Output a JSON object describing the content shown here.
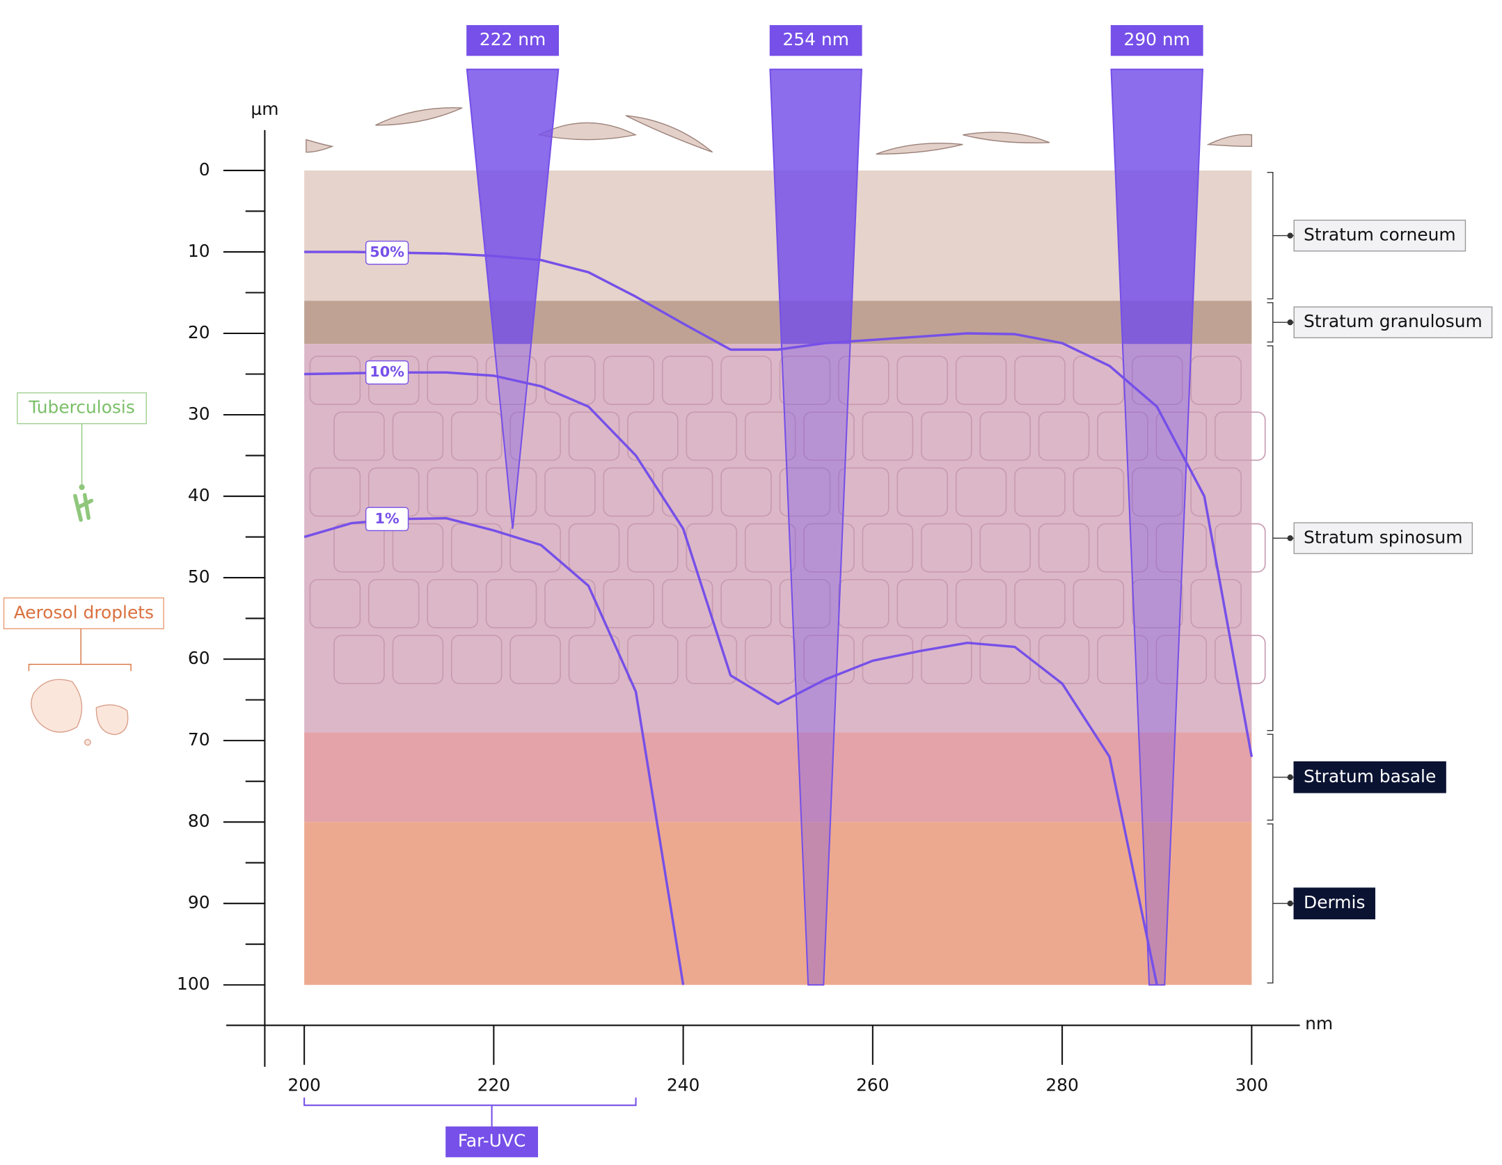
{
  "chart_data": {
    "type": "line",
    "x_unit": "nm",
    "y_unit": "µm",
    "x": [
      200,
      205,
      210,
      215,
      220,
      225,
      230,
      235,
      240,
      245,
      250,
      255,
      260,
      265,
      270,
      275,
      280,
      285,
      290,
      295,
      300
    ],
    "series": [
      {
        "name": "50%",
        "color": "#7650e8",
        "values": [
          10,
          10,
          10.1,
          10.2,
          10.5,
          11,
          12.5,
          15.5,
          18.8,
          22,
          22,
          21.2,
          20.8,
          20.4,
          20,
          20.1,
          21.2,
          24,
          29,
          40,
          72
        ]
      },
      {
        "name": "10%",
        "color": "#7650e8",
        "values": [
          25,
          24.9,
          24.8,
          24.8,
          25.2,
          26.5,
          29,
          35,
          44,
          62,
          65.5,
          62.5,
          60.2,
          59,
          58,
          58.5,
          63,
          72,
          100,
          null,
          null
        ]
      },
      {
        "name": "1%",
        "color": "#7650e8",
        "values": [
          45,
          43.3,
          42.8,
          42.7,
          44.2,
          46,
          51,
          64,
          100,
          null,
          null,
          null,
          null,
          null,
          null,
          null,
          null,
          null,
          null,
          null,
          null
        ]
      }
    ],
    "xlim": [
      200,
      300
    ],
    "xticks": [
      200,
      220,
      240,
      260,
      280,
      300
    ],
    "ylim": [
      0,
      100
    ],
    "y_inverted": true,
    "yticks": [
      0,
      10,
      20,
      30,
      40,
      50,
      60,
      70,
      80,
      90,
      100
    ],
    "yticks_minor": [
      5,
      15,
      25,
      35,
      45,
      55,
      65,
      75,
      85,
      95
    ],
    "beams": [
      {
        "label": "222 nm",
        "wavelength": 222,
        "depth": 44,
        "color": "#7650e8"
      },
      {
        "label": "254 nm",
        "wavelength": 254,
        "depth": 100,
        "color": "#7650e8"
      },
      {
        "label": "290 nm",
        "wavelength": 290,
        "depth": 100,
        "color": "#7650e8"
      }
    ],
    "layers": [
      {
        "name": "Stratum corneum",
        "top": 0,
        "bottom": 16,
        "color": "#e6d3cb",
        "dark_label": false
      },
      {
        "name": "Stratum granulosum",
        "top": 16,
        "bottom": 21.3,
        "color": "#bfa293",
        "dark_label": false
      },
      {
        "name": "Stratum spinosum",
        "top": 21.3,
        "bottom": 69,
        "color": "#dcb7c8",
        "dark_label": false
      },
      {
        "name": "Stratum basale",
        "top": 69,
        "bottom": 80,
        "color": "#e4a3a8",
        "dark_label": true
      },
      {
        "name": "Dermis",
        "top": 80,
        "bottom": 100,
        "color": "#eda98f",
        "dark_label": true
      }
    ],
    "far_uvc": {
      "label": "Far-UVC",
      "range": [
        200,
        235
      ]
    },
    "pathogens": [
      "Tuberculosis",
      "Aerosol droplets"
    ]
  }
}
